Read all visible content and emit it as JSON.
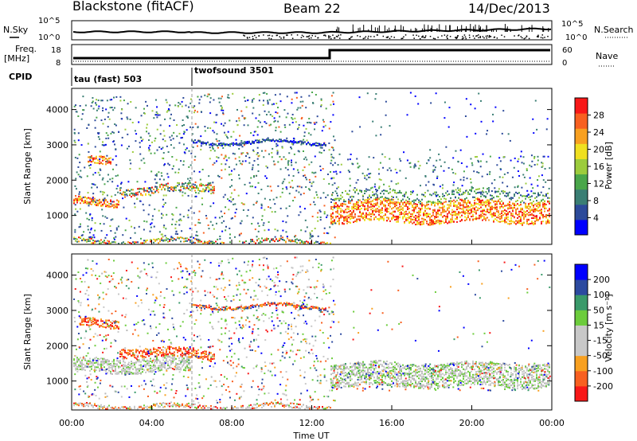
{
  "header": {
    "station": "Blackstone (fitACF)",
    "beam": "Beam 22",
    "date": "14/Dec/2013"
  },
  "top_panels": {
    "nsky_label": "N.Sky",
    "nsearch_label": "N.Search",
    "freq_label_1": "Freq.",
    "freq_label_2": "[MHz]",
    "nave_label": "Nave",
    "cpid_label": "CPID",
    "noise_ticks_left": [
      "10^5",
      "10^0"
    ],
    "noise_ticks_right": [
      "10^5",
      "10^0"
    ],
    "freq_ticks": [
      "18",
      "8"
    ],
    "nave_ticks": [
      "60",
      "0"
    ],
    "cpid_modes": [
      {
        "label": "tau (fast) 503",
        "start_hour": 0
      },
      {
        "label": "twofsound 3501",
        "start_hour": 6
      }
    ]
  },
  "chart_data": [
    {
      "type": "heatmap",
      "title": "",
      "ylabel": "Slant Range [km]",
      "xlabel": "",
      "xlim": [
        0,
        24
      ],
      "ylim": [
        180,
        4600
      ],
      "yticks": [
        "4000",
        "3000",
        "2000",
        "1000"
      ],
      "colorbar_label": "Power [dB]",
      "colorbar_ticks": [
        "28",
        "24",
        "20",
        "16",
        "12",
        "8",
        "4"
      ],
      "colorscale": [
        "#0000ff",
        "#2c4a9a",
        "#3a7e74",
        "#49a64a",
        "#9ccc3c",
        "#f0e020",
        "#f8a020",
        "#f86020",
        "#f81818"
      ],
      "colorbar_range": [
        0,
        32
      ]
    },
    {
      "type": "heatmap",
      "title": "",
      "ylabel": "Slant Range [km]",
      "xlabel": "Time UT",
      "xlim": [
        0,
        24
      ],
      "ylim": [
        180,
        4600
      ],
      "xticks": [
        "00:00",
        "04:00",
        "08:00",
        "12:00",
        "16:00",
        "20:00",
        "00:00"
      ],
      "yticks": [
        "4000",
        "3000",
        "2000",
        "1000"
      ],
      "colorbar_label": "Velocity [m s⁻¹]",
      "colorbar_ticks": [
        "200",
        "100",
        "50",
        "15",
        "-15",
        "-50",
        "-100",
        "-200"
      ],
      "colorscale": [
        "#f81818",
        "#f86020",
        "#f8a020",
        "#c8c8c8",
        "#c8c8c8",
        "#6ccc3c",
        "#3a9a6a",
        "#2c4aa0",
        "#0000ff"
      ],
      "colorbar_range": [
        -250,
        250
      ]
    }
  ]
}
